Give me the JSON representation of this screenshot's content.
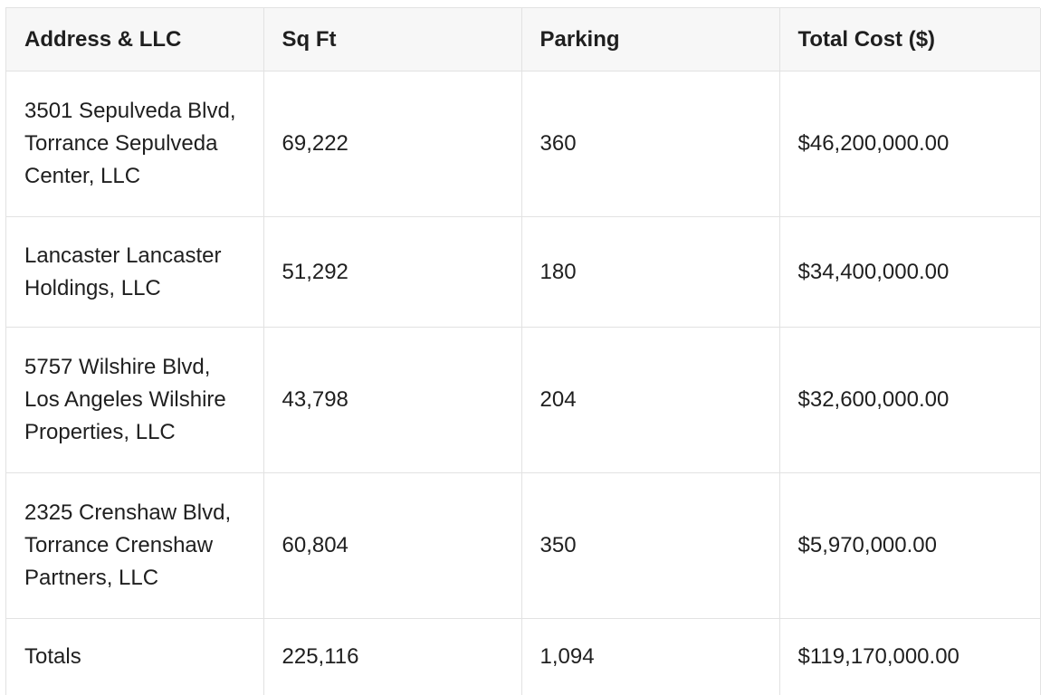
{
  "table": {
    "headers": [
      "Address & LLC",
      "Sq Ft",
      "Parking",
      "Total Cost ($)"
    ],
    "rows": [
      {
        "address": "3501 Sepulveda Blvd, Torrance Sepulveda Center, LLC",
        "sqft": "69,222",
        "parking": "360",
        "cost": "$46,200,000.00"
      },
      {
        "address": "Lancaster Lancaster Holdings, LLC",
        "sqft": "51,292",
        "parking": "180",
        "cost": "$34,400,000.00"
      },
      {
        "address": "5757 Wilshire Blvd, Los Angeles Wilshire Properties, LLC",
        "sqft": "43,798",
        "parking": "204",
        "cost": "$32,600,000.00"
      },
      {
        "address": "2325 Crenshaw Blvd, Torrance Crenshaw Partners, LLC",
        "sqft": "60,804",
        "parking": "350",
        "cost": "$5,970,000.00"
      }
    ],
    "totals": {
      "label": "Totals",
      "sqft": "225,116",
      "parking": "1,094",
      "cost": "$119,170,000.00"
    }
  }
}
